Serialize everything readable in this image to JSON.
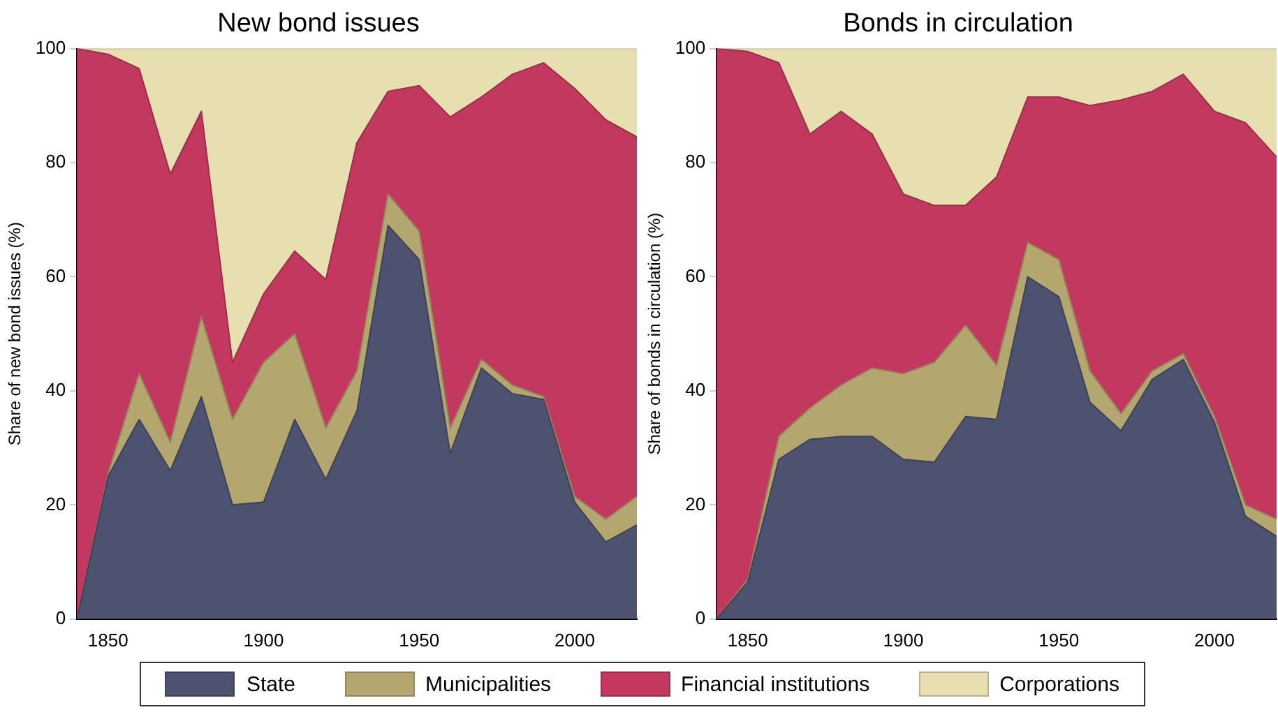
{
  "chart_data": [
    {
      "type": "area",
      "title": "New bond issues",
      "ylabel": "Share of new bond issues (%)",
      "stacked": true,
      "legend": "bottom",
      "grid": false,
      "x": [
        1840,
        1850,
        1860,
        1870,
        1880,
        1890,
        1900,
        1910,
        1920,
        1930,
        1940,
        1950,
        1960,
        1970,
        1980,
        1990,
        2000,
        2010,
        2020
      ],
      "xlim": [
        1840,
        2020
      ],
      "xticks": [
        1850,
        1900,
        1950,
        2000
      ],
      "ylim": [
        0,
        100
      ],
      "yticks": [
        0,
        20,
        40,
        60,
        80,
        100
      ],
      "series": [
        {
          "name": "State",
          "color": "#4c5270",
          "values": [
            0,
            25,
            35,
            26,
            39,
            20,
            20.5,
            35,
            24.5,
            36.5,
            69,
            63,
            29,
            44,
            39.5,
            38.5,
            20.5,
            13.5,
            16.5
          ]
        },
        {
          "name": "Municipalities",
          "color": "#b3a76f",
          "values": [
            0,
            0.5,
            8,
            5,
            14,
            15,
            24.5,
            15,
            9,
            7,
            5.5,
            5,
            4.5,
            1.5,
            1.5,
            0.5,
            1,
            4,
            5
          ]
        },
        {
          "name": "Financial institutions",
          "color": "#c3385e",
          "values": [
            100,
            73.5,
            53.5,
            47,
            36,
            10,
            12,
            14.5,
            26,
            40,
            18,
            25.5,
            54.5,
            46,
            54.5,
            58.5,
            71.5,
            70,
            63
          ]
        },
        {
          "name": "Corporations",
          "color": "#e8dfb0",
          "values": [
            0,
            1,
            3.5,
            22,
            11,
            55,
            43,
            35.5,
            40.5,
            16.5,
            7.5,
            6.5,
            12,
            8.5,
            4.5,
            2.5,
            7,
            12.5,
            15.5
          ]
        }
      ]
    },
    {
      "type": "area",
      "title": "Bonds in circulation",
      "ylabel": "Share of bonds in circulation (%)",
      "stacked": true,
      "legend": "bottom",
      "grid": false,
      "x": [
        1840,
        1850,
        1860,
        1870,
        1880,
        1890,
        1900,
        1910,
        1920,
        1930,
        1940,
        1950,
        1960,
        1970,
        1980,
        1990,
        2000,
        2010,
        2020
      ],
      "xlim": [
        1840,
        2020
      ],
      "xticks": [
        1850,
        1900,
        1950,
        2000
      ],
      "ylim": [
        0,
        100
      ],
      "yticks": [
        0,
        20,
        40,
        60,
        80,
        100
      ],
      "series": [
        {
          "name": "State",
          "color": "#4c5270",
          "values": [
            0,
            6.5,
            28,
            31.5,
            32,
            32,
            28,
            27.5,
            35.5,
            35,
            60,
            56.5,
            38,
            33,
            42,
            45.5,
            34.5,
            18,
            14.5
          ]
        },
        {
          "name": "Municipalities",
          "color": "#b3a76f",
          "values": [
            0,
            0.5,
            4,
            5.5,
            9,
            12,
            15,
            17.5,
            16,
            9.5,
            6,
            6.5,
            5.5,
            3,
            1.5,
            1,
            1,
            2,
            3
          ]
        },
        {
          "name": "Financial institutions",
          "color": "#c3385e",
          "values": [
            100,
            92.5,
            65.5,
            48,
            48,
            41,
            31.5,
            27.5,
            21,
            33,
            25.5,
            28.5,
            46.5,
            55,
            49,
            49,
            53.5,
            67,
            63.5
          ]
        },
        {
          "name": "Corporations",
          "color": "#e8dfb0",
          "values": [
            0,
            0.5,
            2.5,
            15,
            11,
            15,
            25.5,
            27.5,
            27.5,
            22.5,
            8.5,
            8.5,
            10,
            9,
            7.5,
            4.5,
            11,
            13,
            19
          ]
        }
      ]
    }
  ]
}
